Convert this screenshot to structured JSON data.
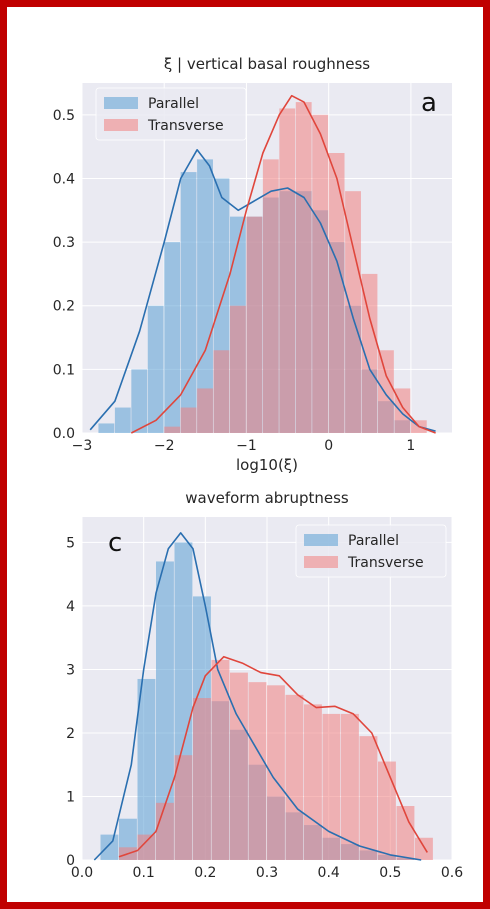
{
  "figure": {
    "border_color": "#c00000",
    "plot_background": "#eaeaf2",
    "grid_color": "#ffffff"
  },
  "series_colors": {
    "Parallel": "#5a9fd4",
    "Transverse": "#f08080",
    "Parallel_line": "#2a6fb0",
    "Transverse_line": "#e0463c"
  },
  "chart_data": [
    {
      "type": "histogram",
      "panel_letter": "a",
      "title": "ξ | vertical basal roughness",
      "xlabel": "log10(ξ)",
      "ylabel": "",
      "xlim": [
        -3,
        1.5
      ],
      "ylim": [
        0,
        0.55
      ],
      "xticks": [
        -3,
        -2,
        -1,
        0,
        1
      ],
      "xtick_labels": [
        "−3",
        "−2",
        "−1",
        "0",
        "1"
      ],
      "yticks": [
        0.0,
        0.1,
        0.2,
        0.3,
        0.4,
        0.5
      ],
      "ytick_labels": [
        "0.0",
        "0.1",
        "0.2",
        "0.3",
        "0.4",
        "0.5"
      ],
      "grid": true,
      "legend_position": "upper-left",
      "series": [
        {
          "name": "Parallel",
          "bin_edges": [
            -2.8,
            -2.6,
            -2.4,
            -2.2,
            -2.0,
            -1.8,
            -1.6,
            -1.4,
            -1.2,
            -1.0,
            -0.8,
            -0.6,
            -0.4,
            -0.2,
            0.0,
            0.2,
            0.4,
            0.6,
            0.8,
            1.0
          ],
          "counts": [
            0.015,
            0.04,
            0.1,
            0.2,
            0.3,
            0.41,
            0.43,
            0.4,
            0.34,
            0.34,
            0.37,
            0.38,
            0.38,
            0.35,
            0.3,
            0.2,
            0.1,
            0.05,
            0.02
          ],
          "kde_x": [
            -2.9,
            -2.6,
            -2.3,
            -2.0,
            -1.8,
            -1.6,
            -1.45,
            -1.3,
            -1.1,
            -0.9,
            -0.7,
            -0.5,
            -0.3,
            -0.1,
            0.1,
            0.3,
            0.5,
            0.7,
            0.9,
            1.1,
            1.3
          ],
          "kde_y": [
            0.005,
            0.05,
            0.16,
            0.3,
            0.4,
            0.445,
            0.42,
            0.37,
            0.35,
            0.365,
            0.38,
            0.385,
            0.37,
            0.33,
            0.27,
            0.18,
            0.1,
            0.06,
            0.03,
            0.01,
            0.003
          ]
        },
        {
          "name": "Transverse",
          "bin_edges": [
            -2.0,
            -1.8,
            -1.6,
            -1.4,
            -1.2,
            -1.0,
            -0.8,
            -0.6,
            -0.4,
            -0.2,
            0.0,
            0.2,
            0.4,
            0.6,
            0.8,
            1.0,
            1.2
          ],
          "counts": [
            0.01,
            0.04,
            0.07,
            0.13,
            0.2,
            0.34,
            0.43,
            0.51,
            0.52,
            0.5,
            0.44,
            0.38,
            0.25,
            0.13,
            0.07,
            0.02
          ],
          "kde_x": [
            -2.4,
            -2.1,
            -1.8,
            -1.5,
            -1.2,
            -1.0,
            -0.8,
            -0.6,
            -0.45,
            -0.3,
            -0.1,
            0.1,
            0.3,
            0.5,
            0.7,
            0.9,
            1.1,
            1.3
          ],
          "kde_y": [
            0.0,
            0.02,
            0.06,
            0.13,
            0.25,
            0.35,
            0.44,
            0.5,
            0.53,
            0.52,
            0.47,
            0.4,
            0.29,
            0.18,
            0.09,
            0.04,
            0.01,
            0.0
          ]
        }
      ]
    },
    {
      "type": "histogram",
      "panel_letter": "c",
      "title": "waveform abruptness",
      "xlabel": "",
      "ylabel": "",
      "xlim": [
        0.0,
        0.6
      ],
      "ylim": [
        0,
        5.4
      ],
      "xticks": [
        0.0,
        0.1,
        0.2,
        0.3,
        0.4,
        0.5,
        0.6
      ],
      "xtick_labels": [
        "0.0",
        "0.1",
        "0.2",
        "0.3",
        "0.4",
        "0.5",
        "0.6"
      ],
      "yticks": [
        0,
        1,
        2,
        3,
        4,
        5
      ],
      "ytick_labels": [
        "0",
        "1",
        "2",
        "3",
        "4",
        "5"
      ],
      "grid": true,
      "legend_position": "upper-right",
      "series": [
        {
          "name": "Parallel",
          "bin_edges": [
            0.03,
            0.06,
            0.09,
            0.12,
            0.15,
            0.18,
            0.21,
            0.24,
            0.27,
            0.3,
            0.33,
            0.36,
            0.39,
            0.42,
            0.45,
            0.48,
            0.51,
            0.54
          ],
          "counts": [
            0.4,
            0.65,
            2.85,
            4.7,
            5.0,
            4.15,
            2.5,
            2.05,
            1.5,
            1.0,
            0.75,
            0.55,
            0.35,
            0.25,
            0.15,
            0.08,
            0.03
          ],
          "kde_x": [
            0.02,
            0.05,
            0.08,
            0.1,
            0.12,
            0.14,
            0.16,
            0.18,
            0.2,
            0.22,
            0.25,
            0.28,
            0.31,
            0.35,
            0.4,
            0.45,
            0.5,
            0.55
          ],
          "kde_y": [
            0.0,
            0.3,
            1.5,
            3.0,
            4.2,
            4.9,
            5.15,
            4.9,
            4.0,
            3.0,
            2.3,
            1.8,
            1.3,
            0.8,
            0.45,
            0.22,
            0.08,
            0.0
          ]
        },
        {
          "name": "Transverse",
          "bin_edges": [
            0.06,
            0.09,
            0.12,
            0.15,
            0.18,
            0.21,
            0.24,
            0.27,
            0.3,
            0.33,
            0.36,
            0.39,
            0.42,
            0.45,
            0.48,
            0.51,
            0.54,
            0.57
          ],
          "counts": [
            0.2,
            0.4,
            0.9,
            1.65,
            2.55,
            3.15,
            2.95,
            2.8,
            2.75,
            2.6,
            2.45,
            2.3,
            2.3,
            1.95,
            1.55,
            0.85,
            0.35
          ],
          "kde_x": [
            0.06,
            0.09,
            0.12,
            0.15,
            0.18,
            0.2,
            0.23,
            0.26,
            0.29,
            0.32,
            0.35,
            0.38,
            0.41,
            0.44,
            0.47,
            0.5,
            0.53,
            0.56
          ],
          "kde_y": [
            0.05,
            0.15,
            0.45,
            1.3,
            2.4,
            2.9,
            3.2,
            3.1,
            2.95,
            2.9,
            2.6,
            2.4,
            2.42,
            2.3,
            2.0,
            1.3,
            0.6,
            0.12
          ]
        }
      ]
    }
  ]
}
